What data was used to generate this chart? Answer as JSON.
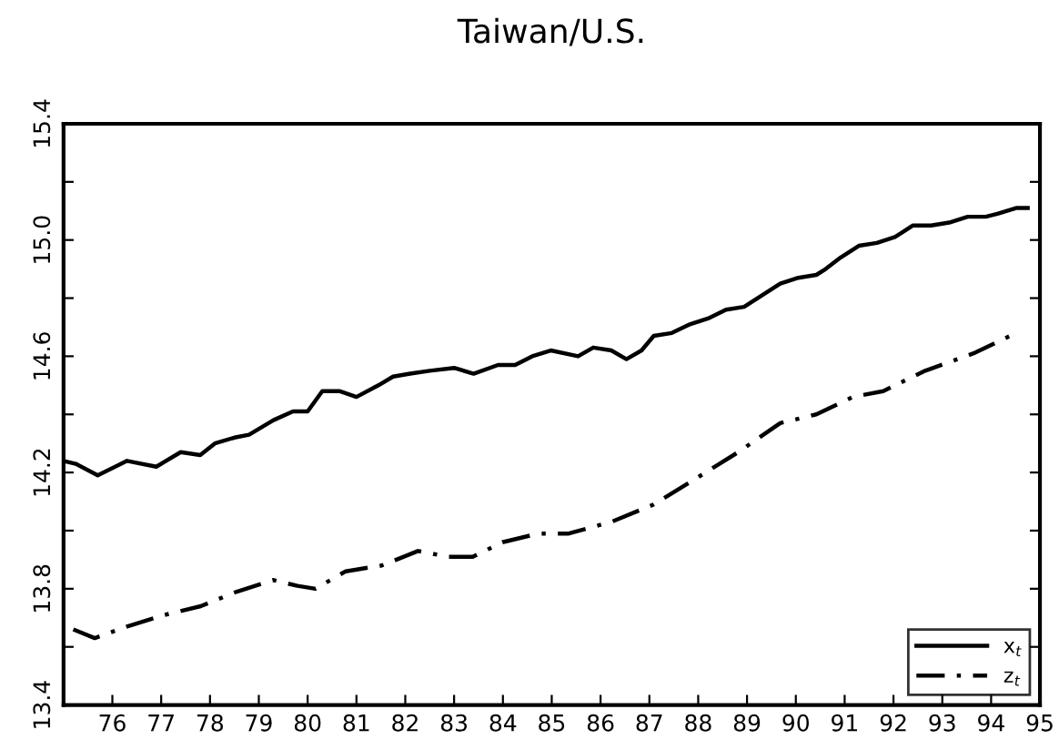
{
  "chart_data": {
    "type": "line",
    "title": "Taiwan/U.S.",
    "xlim": [
      75,
      95
    ],
    "xticks": [
      {
        "value": 75,
        "label": null
      },
      76,
      77,
      78,
      79,
      80,
      81,
      82,
      83,
      84,
      85,
      86,
      87,
      88,
      89,
      90,
      91,
      92,
      93,
      94,
      95
    ],
    "ylim": [
      13.4,
      15.4
    ],
    "yticks": [
      13.4,
      {
        "value": 13.6,
        "label": null
      },
      13.8,
      {
        "value": 14.0,
        "label": null
      },
      14.2,
      {
        "value": 14.4,
        "label": null
      },
      14.6,
      {
        "value": 14.8,
        "label": null
      },
      {
        "value": 15.0,
        "label": "15.0"
      },
      {
        "value": 15.2,
        "label": null
      },
      15.4
    ],
    "grid": false,
    "legend": "bottom right",
    "marker": "none",
    "series": [
      {
        "name": "x$_{t}$",
        "color": "#000000",
        "line_style": "solid",
        "x": [
          75.0,
          75.25,
          75.7,
          76.3,
          76.9,
          77.4,
          77.8,
          78.1,
          78.5,
          78.8,
          79.3,
          79.7,
          80.0,
          80.3,
          80.65,
          81.0,
          81.45,
          81.75,
          82.1,
          82.5,
          83.0,
          83.4,
          83.9,
          84.25,
          84.6,
          84.98,
          85.54,
          85.85,
          86.22,
          86.53,
          86.84,
          87.09,
          87.46,
          87.83,
          88.2,
          88.57,
          88.94,
          89.31,
          89.68,
          90.05,
          90.42,
          90.61,
          90.92,
          91.29,
          91.66,
          92.03,
          92.4,
          92.77,
          93.14,
          93.52,
          93.89,
          94.13,
          94.51,
          94.75
        ],
        "values": [
          14.24,
          14.23,
          14.19,
          14.24,
          14.22,
          14.27,
          14.26,
          14.3,
          14.32,
          14.33,
          14.38,
          14.41,
          14.41,
          14.48,
          14.48,
          14.46,
          14.5,
          14.53,
          14.54,
          14.55,
          14.56,
          14.54,
          14.57,
          14.57,
          14.6,
          14.62,
          14.6,
          14.63,
          14.62,
          14.59,
          14.62,
          14.67,
          14.68,
          14.71,
          14.73,
          14.76,
          14.77,
          14.81,
          14.85,
          14.87,
          14.88,
          14.9,
          14.94,
          14.98,
          14.99,
          15.01,
          15.05,
          15.05,
          15.06,
          15.08,
          15.08,
          15.09,
          15.11,
          15.11
        ]
      },
      {
        "name": "z$_{t}$",
        "color": "#000000",
        "line_style": "dashdot",
        "x": [
          75.2,
          75.64,
          76.3,
          77.07,
          77.81,
          78.55,
          79.29,
          79.79,
          80.16,
          80.78,
          81.52,
          82.26,
          82.88,
          83.38,
          83.99,
          84.73,
          85.35,
          86.22,
          87.09,
          87.96,
          88.82,
          89.68,
          90.42,
          91.17,
          91.79,
          92.65,
          93.64,
          94.51
        ],
        "values": [
          13.66,
          13.63,
          13.67,
          13.71,
          13.74,
          13.79,
          13.83,
          13.81,
          13.8,
          13.86,
          13.88,
          13.93,
          13.91,
          13.91,
          13.96,
          13.99,
          13.99,
          14.03,
          14.09,
          14.18,
          14.27,
          14.37,
          14.4,
          14.46,
          14.48,
          14.55,
          14.61,
          14.68
        ]
      }
    ]
  }
}
